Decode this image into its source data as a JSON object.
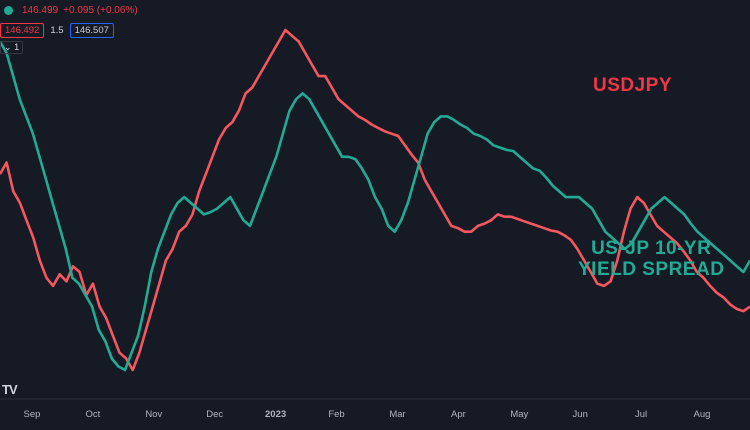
{
  "legend": {
    "price": "146.499",
    "change": "+0.095 (+0.06%)",
    "bid_box": "146.492",
    "spread": "1.5",
    "ask_box": "146.507",
    "collapse_label": "1"
  },
  "logo": "TV",
  "colors": {
    "background": "#161a25",
    "usdjpy": "#f5575f",
    "spread": "#22ab94",
    "axis_text": "#b2b5be"
  },
  "chart_data": {
    "type": "line",
    "x_tick_labels": [
      "Sep",
      "Oct",
      "Nov",
      "Dec",
      "2023",
      "Feb",
      "Mar",
      "Apr",
      "May",
      "Jun",
      "Jul",
      "Aug"
    ],
    "y_axis_visible": false,
    "grid": false,
    "series": [
      {
        "name": "USDJPY",
        "color": "#f5575f",
        "values": [
          215,
          225,
          200,
          190,
          175,
          160,
          140,
          125,
          118,
          128,
          122,
          135,
          130,
          110,
          120,
          100,
          90,
          75,
          60,
          55,
          45,
          60,
          80,
          100,
          120,
          140,
          150,
          165,
          170,
          180,
          200,
          215,
          230,
          245,
          255,
          260,
          270,
          285,
          290,
          300,
          310,
          320,
          330,
          340,
          335,
          330,
          320,
          310,
          300,
          300,
          290,
          280,
          275,
          270,
          265,
          262,
          258,
          255,
          252,
          250,
          248,
          240,
          232,
          225,
          210,
          200,
          190,
          180,
          170,
          168,
          165,
          165,
          170,
          172,
          175,
          180,
          178,
          178,
          176,
          174,
          172,
          170,
          168,
          166,
          165,
          162,
          158,
          150,
          140,
          130,
          120,
          118,
          122,
          140,
          165,
          185,
          195,
          190,
          180,
          170,
          165,
          160,
          155,
          148,
          140,
          130,
          125,
          118,
          112,
          108,
          102,
          98,
          96,
          100
        ]
      },
      {
        "name": "US-JP 10-YR YIELD SPREAD",
        "color": "#22ab94",
        "values": [
          330,
          320,
          300,
          280,
          265,
          250,
          230,
          210,
          190,
          170,
          150,
          125,
          120,
          110,
          100,
          80,
          70,
          55,
          48,
          45,
          60,
          75,
          100,
          130,
          150,
          165,
          180,
          190,
          195,
          190,
          185,
          180,
          182,
          185,
          190,
          195,
          185,
          175,
          170,
          185,
          200,
          215,
          230,
          250,
          270,
          280,
          285,
          280,
          270,
          260,
          250,
          240,
          230,
          230,
          228,
          220,
          210,
          195,
          185,
          170,
          165,
          175,
          190,
          210,
          230,
          250,
          260,
          265,
          265,
          262,
          258,
          255,
          250,
          248,
          245,
          240,
          238,
          236,
          235,
          230,
          225,
          220,
          218,
          212,
          205,
          200,
          195,
          195,
          195,
          190,
          185,
          175,
          165,
          160,
          155,
          150,
          155,
          165,
          175,
          185,
          190,
          195,
          190,
          185,
          180,
          172,
          165,
          160,
          155,
          150,
          145,
          140,
          135,
          130,
          140
        ]
      }
    ]
  }
}
